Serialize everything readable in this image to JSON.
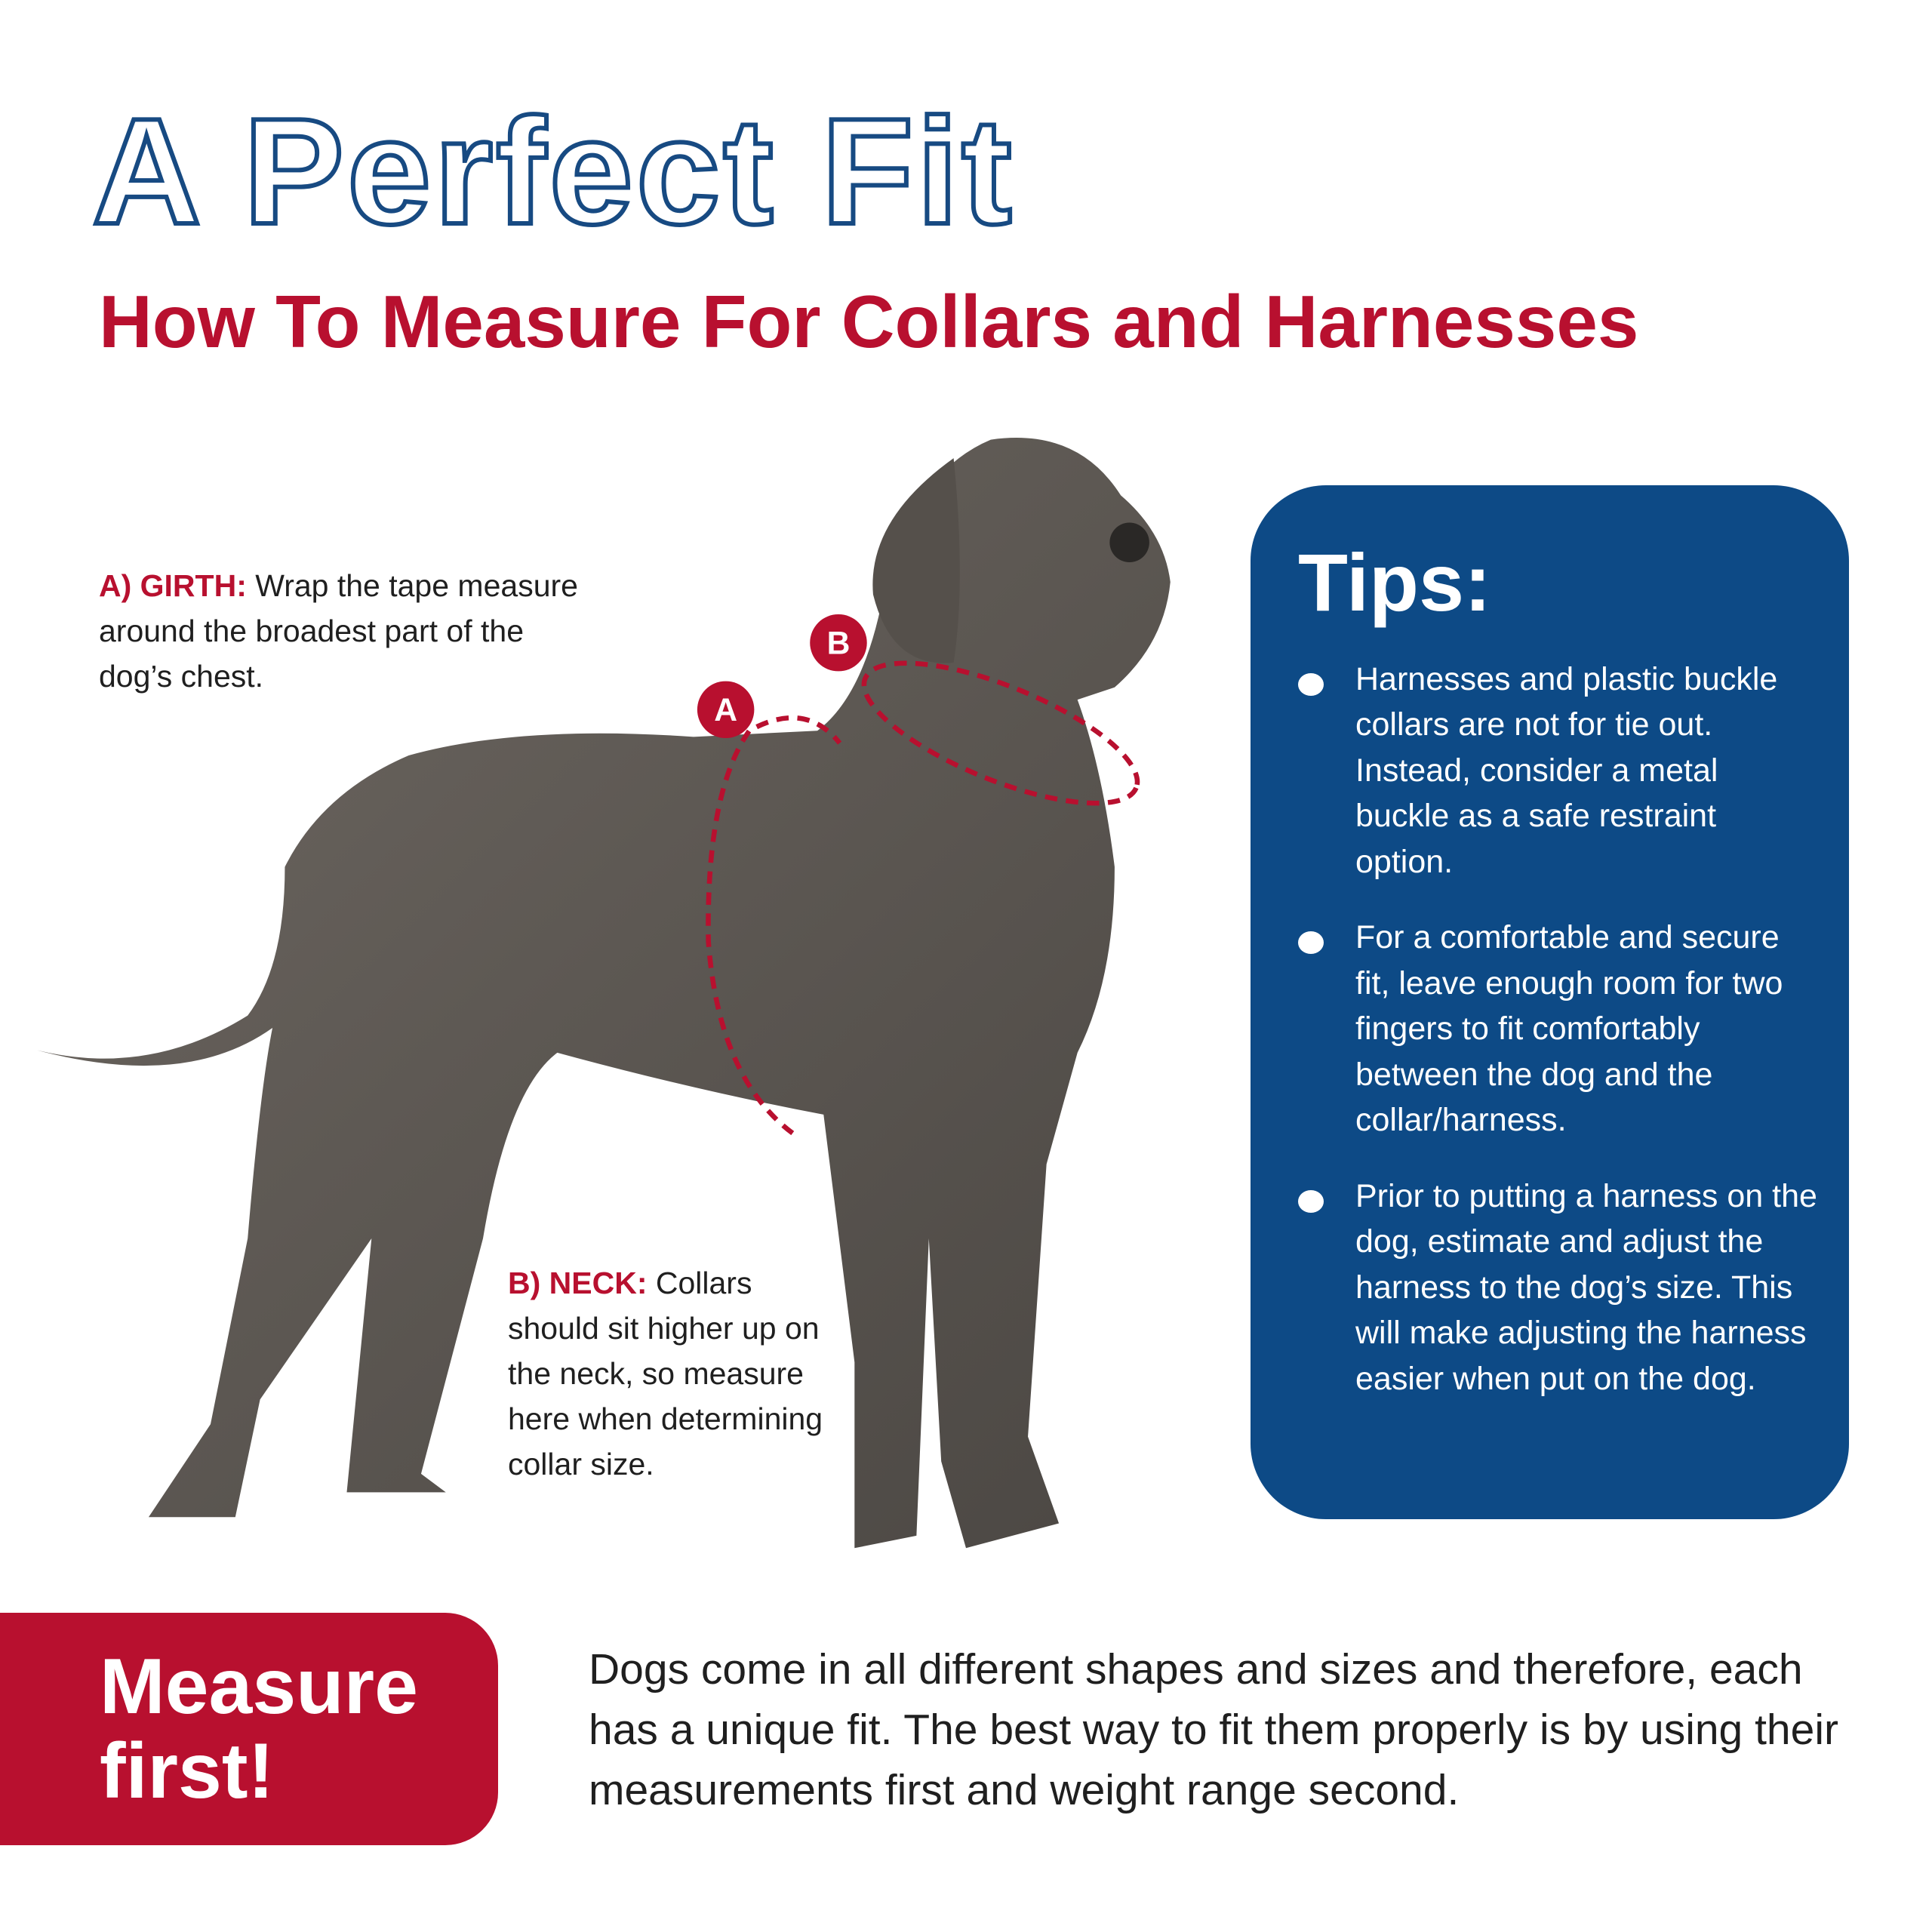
{
  "header": {
    "title": "A Perfect Fit",
    "subtitle": "How To Measure For Collars and Harnesses"
  },
  "callouts": {
    "girth": {
      "marker": "A",
      "label": "A) GIRTH:",
      "text": " Wrap the tape measure around the broadest part of the dog’s chest."
    },
    "neck": {
      "marker": "B",
      "label": "B) NECK:",
      "text": " Collars should sit higher up on the neck, so measure here when determining collar size."
    }
  },
  "tips": {
    "heading": "Tips:",
    "items": [
      "Harnesses and plastic buckle collars are not for tie out. Instead, consider a metal buckle as a safe restraint option.",
      "For a comfortable and secure fit, leave enough room for two fingers to fit comfortably between the dog and the collar/harness.",
      "Prior to putting a harness on the dog, estimate and adjust the harness to the dog’s size. This will make adjusting the harness easier when put on the dog."
    ]
  },
  "footer": {
    "badge_line1": "Measure",
    "badge_line2": "first!",
    "text": "Dogs come in all different shapes and sizes and therefore, each has a unique fit. The best way to fit them properly is by using their measurements first and weight range second."
  },
  "colors": {
    "navy": "#0d4a86",
    "red": "#b8102f",
    "dog": "#5f5a55"
  }
}
